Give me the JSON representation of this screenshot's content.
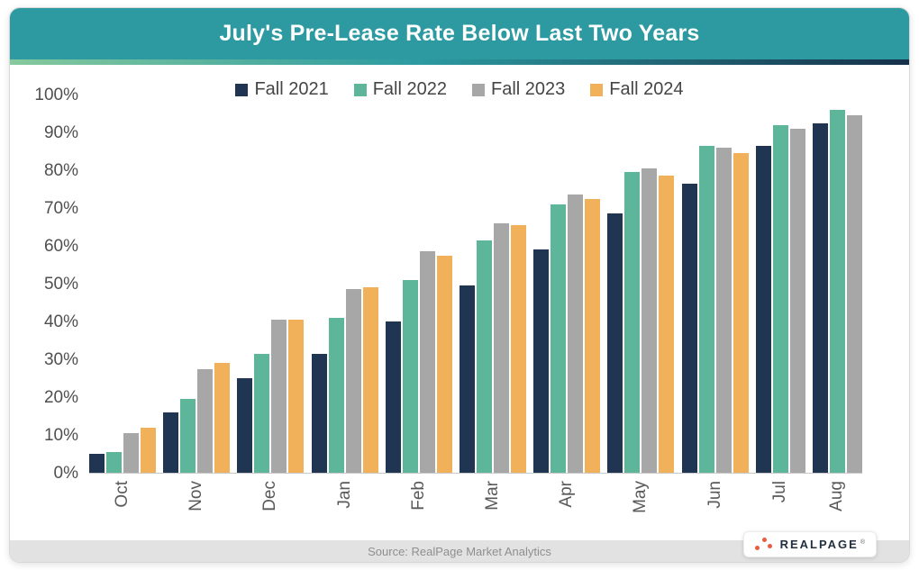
{
  "header": {
    "title": "July's Pre-Lease Rate Below Last Two Years",
    "bg_color": "#2C9AA0",
    "gradient_colors": [
      "#86C99C",
      "#2C9BA1",
      "#16304A"
    ]
  },
  "footer": {
    "source_text": "Source: RealPage Market Analytics",
    "logo_text": "REALPAGE",
    "logo_dot_color": "#EA5B40"
  },
  "chart_data": {
    "type": "bar",
    "title": "July's Pre-Lease Rate Below Last Two Years",
    "categories": [
      "Oct",
      "Nov",
      "Dec",
      "Jan",
      "Feb",
      "Mar",
      "Apr",
      "May",
      "Jun",
      "Jul",
      "Aug"
    ],
    "series": [
      {
        "name": "Fall 2021",
        "color": "#1F3552",
        "values": [
          5,
          16,
          25,
          31.5,
          40,
          49.5,
          59,
          68.5,
          76.5,
          86.5,
          92.5
        ]
      },
      {
        "name": "Fall 2022",
        "color": "#5EB69A",
        "values": [
          5.5,
          19.5,
          31.5,
          41,
          51,
          61.5,
          71,
          79.5,
          86.5,
          92,
          96
        ]
      },
      {
        "name": "Fall 2023",
        "color": "#A7A7A7",
        "values": [
          10.5,
          27.5,
          40.5,
          48.5,
          58.5,
          66,
          73.5,
          80.5,
          86,
          91,
          94.5
        ]
      },
      {
        "name": "Fall 2024",
        "color": "#F1B15B",
        "values": [
          12,
          29,
          40.5,
          49,
          57.5,
          65.5,
          72.5,
          78.5,
          84.5,
          null,
          null
        ]
      }
    ],
    "ylabel": "",
    "xlabel": "",
    "ylim": [
      0,
      100
    ],
    "ytick_step": 10,
    "ytick_suffix": "%",
    "legend_position": "top",
    "grid": false
  }
}
